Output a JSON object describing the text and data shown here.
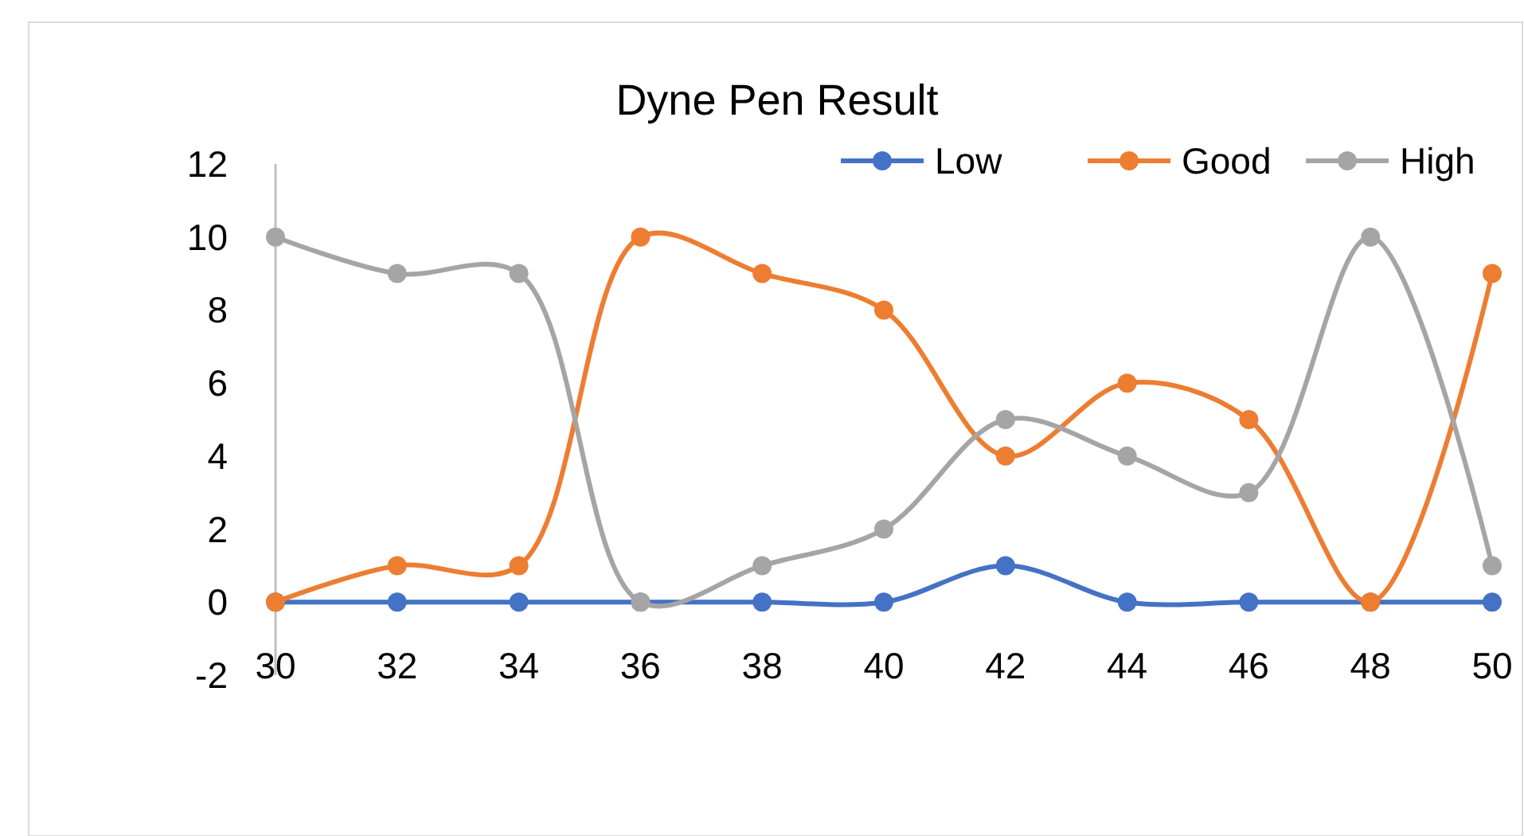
{
  "chart_data": {
    "type": "line",
    "title": "Dyne Pen Result",
    "x": [
      30,
      32,
      34,
      36,
      38,
      40,
      42,
      44,
      46,
      48,
      50
    ],
    "series": [
      {
        "name": "Low",
        "color": "#4472c4",
        "values": [
          0,
          0,
          0,
          0,
          0,
          0,
          1,
          0,
          0,
          0,
          0
        ]
      },
      {
        "name": "Good",
        "color": "#ed7d31",
        "values": [
          0,
          1,
          1,
          10,
          9,
          8,
          4,
          6,
          5,
          0,
          9
        ]
      },
      {
        "name": "High",
        "color": "#a5a5a5",
        "values": [
          10,
          9,
          9,
          0,
          1,
          2,
          5,
          4,
          3,
          10,
          1
        ]
      }
    ],
    "xlim": [
      30,
      50
    ],
    "xticks": [
      30,
      32,
      34,
      36,
      38,
      40,
      42,
      44,
      46,
      48,
      50
    ],
    "ylim": [
      -2,
      12
    ],
    "yticks": [
      -2,
      0,
      2,
      4,
      6,
      8,
      10,
      12
    ],
    "grid": false,
    "legend": "top right",
    "marker": "circle",
    "line_style": "solid"
  }
}
